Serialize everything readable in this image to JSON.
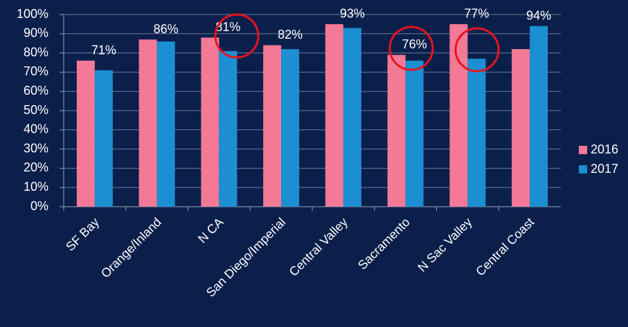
{
  "chart_data": {
    "type": "bar",
    "categories": [
      "SF Bay",
      "Orange/Inland",
      "N CA",
      "San Diego/Imperial",
      "Central Valley",
      "Sacramento",
      "N Sac Valley",
      "Central Coast"
    ],
    "series": [
      {
        "name": "2016",
        "color": "#f27a96",
        "values": [
          76,
          87,
          88,
          84,
          95,
          79,
          95,
          82
        ]
      },
      {
        "name": "2017",
        "color": "#1b8fd2",
        "values": [
          71,
          86,
          81,
          82,
          93,
          76,
          77,
          94
        ],
        "value_labels": [
          "71%",
          "86%",
          "81%",
          "82%",
          "93%",
          "76%",
          "77%",
          "94%"
        ]
      }
    ],
    "ylim": [
      0,
      100
    ],
    "yticks": [
      {
        "value": 0,
        "label": "0%"
      },
      {
        "value": 10,
        "label": "10%"
      },
      {
        "value": 20,
        "label": "20%"
      },
      {
        "value": 30,
        "label": "30%"
      },
      {
        "value": 40,
        "label": "40%"
      },
      {
        "value": 50,
        "label": "50%"
      },
      {
        "value": 60,
        "label": "60%"
      },
      {
        "value": 70,
        "label": "70%"
      },
      {
        "value": 80,
        "label": "80%"
      },
      {
        "value": 90,
        "label": "90%"
      },
      {
        "value": 100,
        "label": "100%"
      }
    ],
    "grid": true,
    "legend": "right"
  }
}
